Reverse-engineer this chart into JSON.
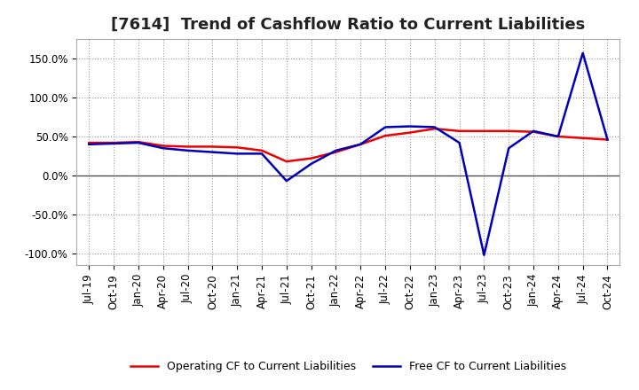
{
  "title": "[7614]  Trend of Cashflow Ratio to Current Liabilities",
  "x_labels": [
    "Jul-19",
    "Oct-19",
    "Jan-20",
    "Apr-20",
    "Jul-20",
    "Oct-20",
    "Jan-21",
    "Apr-21",
    "Jul-21",
    "Oct-21",
    "Jan-22",
    "Apr-22",
    "Jul-22",
    "Oct-22",
    "Jan-23",
    "Apr-23",
    "Jul-23",
    "Oct-23",
    "Jan-24",
    "Apr-24",
    "Jul-24",
    "Oct-24"
  ],
  "operating_cf": [
    0.42,
    0.42,
    0.43,
    0.38,
    0.37,
    0.37,
    0.36,
    0.32,
    0.18,
    0.22,
    0.3,
    0.4,
    0.51,
    0.55,
    0.6,
    0.57,
    0.57,
    0.57,
    0.56,
    0.5,
    0.48,
    0.46
  ],
  "free_cf": [
    0.4,
    0.41,
    0.42,
    0.35,
    0.32,
    0.3,
    0.28,
    0.28,
    -0.07,
    0.15,
    0.32,
    0.4,
    0.62,
    0.63,
    0.62,
    0.42,
    -1.02,
    0.35,
    0.57,
    0.5,
    1.57,
    0.46
  ],
  "operating_cf_color": "#ee0000",
  "free_cf_color": "#0000bb",
  "background_color": "#ffffff",
  "grid_color": "#999999",
  "ylim": [
    -1.15,
    1.75
  ],
  "yticks": [
    -1.0,
    -0.5,
    0.0,
    0.5,
    1.0,
    1.5
  ],
  "ytick_labels": [
    "-100.0%",
    "-50.0%",
    "0.0%",
    "50.0%",
    "100.0%",
    "150.0%"
  ],
  "legend_operating": "Operating CF to Current Liabilities",
  "legend_free": "Free CF to Current Liabilities",
  "line_width": 1.8,
  "title_fontsize": 13,
  "tick_fontsize": 8.5,
  "legend_fontsize": 9
}
